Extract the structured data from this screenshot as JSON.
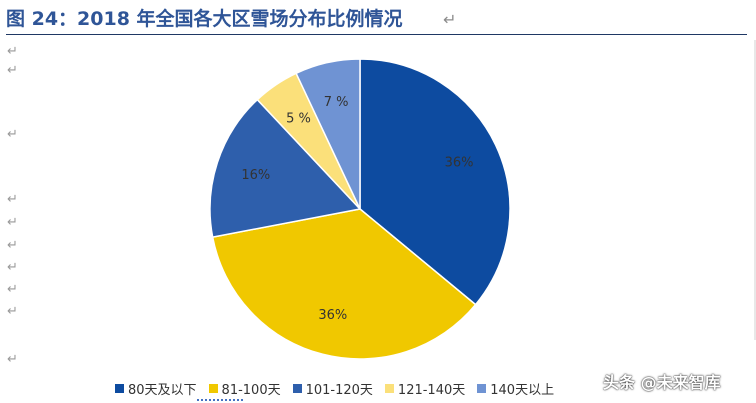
{
  "figure": {
    "title": "图 24：2018 年全国各大区雪场分布比例情况",
    "paragraph_mark": "↵"
  },
  "chart_data": {
    "type": "pie",
    "title": "",
    "start_angle_deg": 0,
    "direction": "clockwise",
    "legend_position": "bottom",
    "slices": [
      {
        "name": "80天及以下",
        "value": 36,
        "label": "36%",
        "color": "#0d4ba0"
      },
      {
        "name": "81-100天",
        "value": 36,
        "label": "36%",
        "color": "#f0c800"
      },
      {
        "name": "101-120天",
        "value": 16,
        "label": "16%",
        "color": "#2e5fac"
      },
      {
        "name": "121-140天",
        "value": 5,
        "label": "5 %",
        "color": "#fbe07a"
      },
      {
        "name": "140天以上",
        "value": 7,
        "label": "7 %",
        "color": "#6f93d3"
      }
    ]
  },
  "watermark": {
    "text": "头条 @未来智库"
  }
}
